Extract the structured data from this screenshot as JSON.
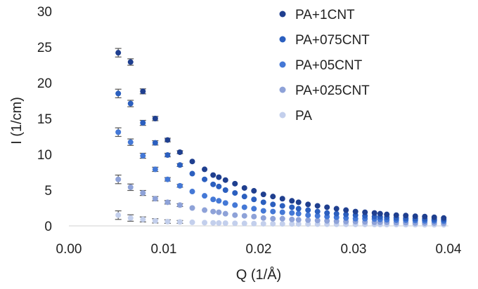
{
  "chart_data": {
    "type": "scatter",
    "title": "",
    "xlabel": "Q (1/Å)",
    "ylabel": "I (1/cm)",
    "xlim": [
      0,
      0.04
    ],
    "ylim": [
      0,
      30
    ],
    "x_ticks": [
      "0.00",
      "0.01",
      "0.02",
      "0.03",
      "0.04"
    ],
    "y_ticks": [
      "0",
      "5",
      "10",
      "15",
      "20",
      "25",
      "30"
    ],
    "grid": false,
    "legend_position": "top-right",
    "x": [
      0.0052,
      0.0065,
      0.0078,
      0.0091,
      0.0104,
      0.0117,
      0.013,
      0.0143,
      0.0152,
      0.0158,
      0.0165,
      0.0175,
      0.0185,
      0.0195,
      0.0205,
      0.0215,
      0.0225,
      0.0235,
      0.0242,
      0.0252,
      0.0262,
      0.0272,
      0.0282,
      0.0292,
      0.0302,
      0.0312,
      0.0322,
      0.0328,
      0.0335,
      0.0345,
      0.0355,
      0.0365,
      0.0375,
      0.0385,
      0.0395
    ],
    "series": [
      {
        "name": "PA+1CNT",
        "color": "#1f3f8f",
        "values": [
          24.2,
          22.9,
          18.8,
          15.0,
          12.0,
          10.3,
          9.0,
          7.9,
          7.1,
          6.8,
          6.4,
          5.9,
          5.3,
          4.9,
          4.4,
          4.1,
          3.8,
          3.5,
          3.3,
          3.0,
          2.8,
          2.6,
          2.4,
          2.2,
          2.0,
          1.9,
          1.8,
          1.7,
          1.6,
          1.5,
          1.45,
          1.35,
          1.3,
          1.2,
          1.1
        ]
      },
      {
        "name": "PA+075CNT",
        "color": "#2b5fbf",
        "values": [
          18.5,
          17.1,
          14.4,
          11.6,
          9.9,
          8.5,
          7.3,
          6.5,
          5.8,
          5.5,
          5.0,
          4.6,
          4.1,
          3.7,
          3.3,
          3.0,
          2.8,
          2.6,
          2.4,
          2.2,
          2.0,
          1.8,
          1.7,
          1.6,
          1.5,
          1.4,
          1.3,
          1.25,
          1.2,
          1.1,
          1.05,
          1.0,
          0.95,
          0.9,
          0.85
        ]
      },
      {
        "name": "PA+05CNT",
        "color": "#4478d6",
        "values": [
          13.1,
          11.7,
          9.8,
          7.9,
          6.5,
          5.6,
          4.8,
          4.2,
          3.7,
          3.5,
          3.2,
          2.9,
          2.6,
          2.4,
          2.1,
          2.0,
          1.9,
          1.8,
          1.7,
          1.5,
          1.4,
          1.3,
          1.2,
          1.1,
          1.0,
          1.0,
          0.95,
          0.9,
          0.85,
          0.8,
          0.8,
          0.75,
          0.7,
          0.7,
          0.65
        ]
      },
      {
        "name": "PA+025CNT",
        "color": "#8ea2d8",
        "values": [
          6.5,
          5.4,
          4.6,
          3.8,
          3.3,
          2.9,
          2.5,
          2.2,
          2.0,
          1.9,
          1.7,
          1.5,
          1.4,
          1.3,
          1.1,
          1.0,
          1.0,
          0.9,
          0.85,
          0.8,
          0.75,
          0.7,
          0.65,
          0.6,
          0.6,
          0.55,
          0.5,
          0.5,
          0.5,
          0.45,
          0.45,
          0.4,
          0.4,
          0.4,
          0.35
        ]
      },
      {
        "name": "PA",
        "color": "#c3cfec",
        "values": [
          1.5,
          1.1,
          0.9,
          0.7,
          0.6,
          0.55,
          0.5,
          0.45,
          0.42,
          0.4,
          0.38,
          0.36,
          0.34,
          0.32,
          0.3,
          0.29,
          0.28,
          0.27,
          0.26,
          0.25,
          0.24,
          0.23,
          0.22,
          0.21,
          0.2,
          0.2,
          0.19,
          0.19,
          0.18,
          0.18,
          0.17,
          0.17,
          0.16,
          0.16,
          0.15
        ]
      }
    ],
    "error_bars": {
      "x_count": 6,
      "values": [
        0.6,
        0.45,
        0.35,
        0.3,
        0.25,
        0.2
      ]
    }
  }
}
